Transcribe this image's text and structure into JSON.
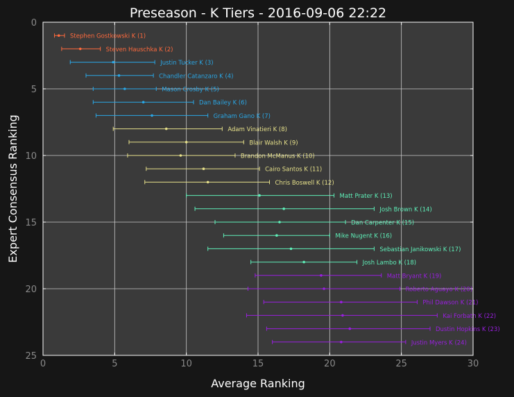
{
  "colors": {
    "background": "#161616",
    "plot_bg": "#3a3a3a",
    "grid": "#c8c8c8",
    "axis_text": "#8a8a8a",
    "title_text": "#ffffff"
  },
  "chart_data": {
    "type": "scatter",
    "title": "Preseason - K Tiers - 2016-09-06 22:22",
    "xlabel": "Average Ranking",
    "ylabel": "Expert Consensus Ranking",
    "xlim": [
      0,
      30
    ],
    "ylim": [
      25,
      0
    ],
    "xticks": [
      "0",
      "5",
      "10",
      "15",
      "20",
      "25",
      "30"
    ],
    "yticks": [
      "0",
      "5",
      "10",
      "15",
      "20",
      "25"
    ],
    "grid": true,
    "tiers": [
      {
        "color": "#ff6a3d",
        "players": [
          {
            "label": "Stephen Gostkowski K (1)",
            "rank": 1,
            "avg": 1.1,
            "min": 0.8,
            "max": 1.5
          },
          {
            "label": "Steven Hauschka K (2)",
            "rank": 2,
            "avg": 2.6,
            "min": 1.3,
            "max": 4.0
          }
        ]
      },
      {
        "color": "#2aa7e6",
        "players": [
          {
            "label": "Justin Tucker K (3)",
            "rank": 3,
            "avg": 4.9,
            "min": 1.9,
            "max": 7.8
          },
          {
            "label": "Chandler Catanzaro K (4)",
            "rank": 4,
            "avg": 5.3,
            "min": 3.0,
            "max": 7.7
          },
          {
            "label": "Mason Crosby K (5)",
            "rank": 5,
            "avg": 5.7,
            "min": 3.5,
            "max": 7.9
          },
          {
            "label": "Dan Bailey K (6)",
            "rank": 6,
            "avg": 7.0,
            "min": 3.5,
            "max": 10.5
          },
          {
            "label": "Graham Gano K (7)",
            "rank": 7,
            "avg": 7.6,
            "min": 3.7,
            "max": 11.5
          }
        ]
      },
      {
        "color": "#e6e08a",
        "players": [
          {
            "label": "Adam Vinatieri K (8)",
            "rank": 8,
            "avg": 8.6,
            "min": 4.9,
            "max": 12.5
          },
          {
            "label": "Blair Walsh K (9)",
            "rank": 9,
            "avg": 10.0,
            "min": 6.0,
            "max": 14.0
          },
          {
            "label": "Brandon McManus K (10)",
            "rank": 10,
            "avg": 9.6,
            "min": 5.9,
            "max": 13.4
          },
          {
            "label": "Cairo Santos K (11)",
            "rank": 11,
            "avg": 11.2,
            "min": 7.2,
            "max": 15.1
          },
          {
            "label": "Chris Boswell K (12)",
            "rank": 12,
            "avg": 11.5,
            "min": 7.1,
            "max": 15.8
          }
        ]
      },
      {
        "color": "#5ff0b9",
        "players": [
          {
            "label": "Matt Prater K (13)",
            "rank": 13,
            "avg": 15.1,
            "min": 10.0,
            "max": 20.3
          },
          {
            "label": "Josh Brown K (14)",
            "rank": 14,
            "avg": 16.8,
            "min": 10.6,
            "max": 23.1
          },
          {
            "label": "Dan Carpenter K (15)",
            "rank": 15,
            "avg": 16.5,
            "min": 12.0,
            "max": 21.1
          },
          {
            "label": "Mike Nugent K (16)",
            "rank": 16,
            "avg": 16.3,
            "min": 12.6,
            "max": 20.0
          },
          {
            "label": "Sebastian Janikowski K (17)",
            "rank": 17,
            "avg": 17.3,
            "min": 11.5,
            "max": 23.1
          },
          {
            "label": "Josh Lambo K (18)",
            "rank": 18,
            "avg": 18.2,
            "min": 14.5,
            "max": 21.9
          }
        ]
      },
      {
        "color": "#9a1fe0",
        "players": [
          {
            "label": "Matt Bryant K (19)",
            "rank": 19,
            "avg": 19.4,
            "min": 14.8,
            "max": 23.6
          },
          {
            "label": "Roberto Aguayo K (20)",
            "rank": 20,
            "avg": 19.6,
            "min": 14.3,
            "max": 24.9
          },
          {
            "label": "Phil Dawson K (21)",
            "rank": 21,
            "avg": 20.8,
            "min": 15.4,
            "max": 26.1
          },
          {
            "label": "Kai Forbath K (22)",
            "rank": 22,
            "avg": 20.9,
            "min": 14.2,
            "max": 27.5
          },
          {
            "label": "Dustin Hopkins K (23)",
            "rank": 23,
            "avg": 21.4,
            "min": 15.6,
            "max": 27.0
          },
          {
            "label": "Justin Myers K (24)",
            "rank": 24,
            "avg": 20.8,
            "min": 16.0,
            "max": 25.3
          }
        ]
      }
    ]
  }
}
